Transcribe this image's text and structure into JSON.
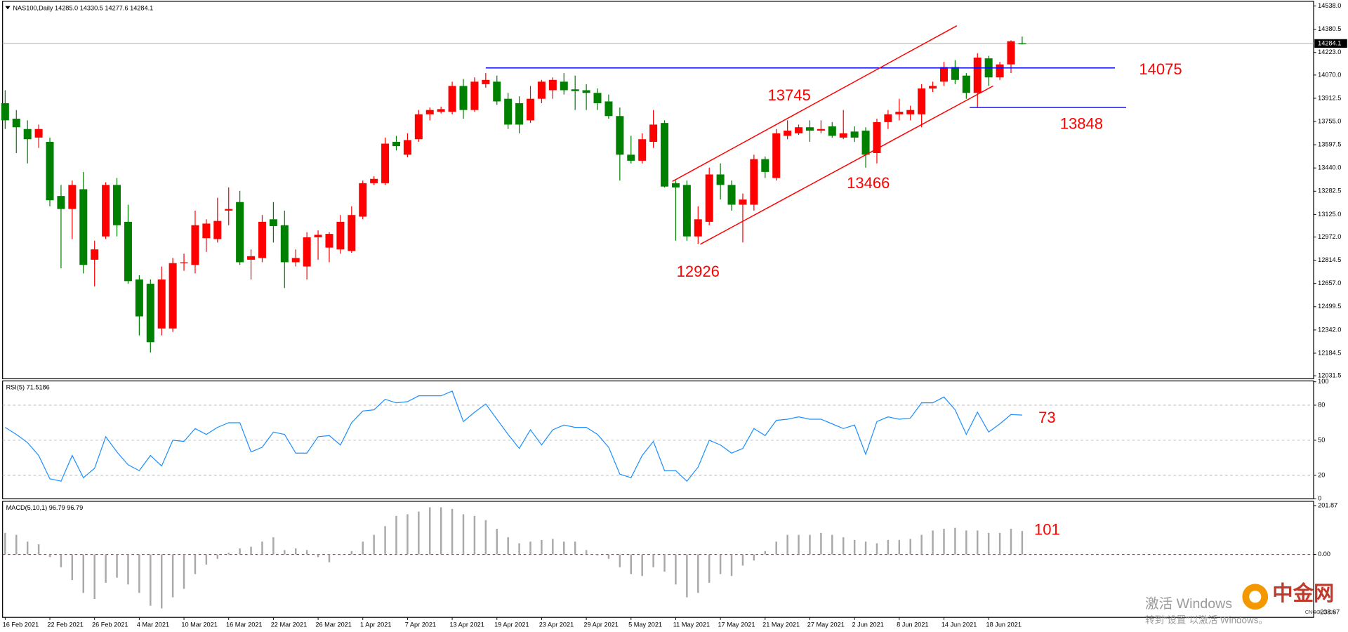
{
  "chart_data": [
    {
      "type": "candlestick",
      "title": "NAS100,Daily  14285.0 14330.5 14277.6 14284.1",
      "categories": [
        "16 Feb 2021",
        null,
        null,
        null,
        "22 Feb 2021",
        null,
        null,
        null,
        "26 Feb 2021",
        null,
        null,
        null,
        "4 Mar 2021",
        null,
        null,
        null,
        "10 Mar 2021",
        null,
        null,
        null,
        "16 Mar 2021",
        null,
        null,
        null,
        "22 Mar 2021",
        null,
        null,
        null,
        "26 Mar 2021",
        null,
        null,
        null,
        "1 Apr 2021",
        null,
        null,
        null,
        "7 Apr 2021",
        null,
        null,
        null,
        "13 Apr 2021",
        null,
        null,
        null,
        "19 Apr 2021",
        null,
        null,
        null,
        "23 Apr 2021",
        null,
        null,
        null,
        "29 Apr 2021",
        null,
        null,
        null,
        "5 May 2021",
        null,
        null,
        null,
        "11 May 2021",
        null,
        null,
        null,
        "17 May 2021",
        null,
        null,
        null,
        "21 May 2021",
        null,
        null,
        null,
        "27 May 2021",
        null,
        null,
        null,
        "2 Jun 2021",
        null,
        null,
        null,
        "8 Jun 2021",
        null,
        null,
        null,
        "14 Jun 2021",
        null,
        null,
        null,
        "18 Jun 2021",
        null,
        null,
        null
      ],
      "open": [
        13879,
        13774,
        13704,
        13646,
        13617,
        13250,
        13162,
        13296,
        12818,
        12976,
        13325,
        13075,
        12684,
        12655,
        12352,
        12352,
        12795,
        12783,
        12964,
        12958,
        13151,
        13209,
        12818,
        12830,
        13092,
        13052,
        12801,
        12772,
        12970,
        12900,
        12888,
        12877,
        13110,
        13337,
        13337,
        13617,
        13530,
        13635,
        13804,
        13821,
        13821,
        13996,
        13833,
        14008,
        14025,
        13909,
        13879,
        13763,
        13909,
        13967,
        14025,
        13973,
        13967,
        13949,
        13891,
        13792,
        13530,
        13489,
        13617,
        13745,
        13337,
        13325,
        12976,
        13075,
        13396,
        13325,
        13191,
        13191,
        13500,
        13372,
        13658,
        13675,
        13716,
        13693,
        13722,
        13646,
        13687,
        13693,
        13541,
        13751,
        13804,
        13804,
        13804,
        13979,
        14025,
        14124,
        14066,
        13949,
        14183,
        14054,
        14142,
        14285.0
      ],
      "high": [
        13967,
        13833,
        13763,
        13734,
        13646,
        13325,
        13355,
        13413,
        12947,
        13343,
        13372,
        13191,
        12713,
        12684,
        12772,
        12830,
        12859,
        13151,
        13092,
        13238,
        13308,
        13285,
        12888,
        13121,
        13209,
        13151,
        12888,
        13005,
        13017,
        13005,
        13121,
        13180,
        13355,
        13384,
        13646,
        13658,
        13675,
        13833,
        13850,
        13856,
        14025,
        14043,
        14054,
        14083,
        14066,
        13949,
        13926,
        13996,
        14037,
        14054,
        14083,
        14066,
        14008,
        13979,
        13938,
        13850,
        13658,
        13675,
        13833,
        13763,
        13355,
        13355,
        13180,
        13442,
        13471,
        13355,
        13267,
        13530,
        13518,
        13704,
        13763,
        13734,
        13763,
        13763,
        13751,
        13833,
        13722,
        13716,
        13774,
        13833,
        13909,
        13862,
        14008,
        14025,
        14159,
        14171,
        14083,
        14218,
        14200,
        14159,
        14305,
        14330.5
      ],
      "low": [
        13704,
        13541,
        13471,
        13576,
        13180,
        12760,
        12958,
        12725,
        12638,
        12958,
        12976,
        12655,
        12305,
        12189,
        12305,
        12329,
        12743,
        12725,
        12871,
        12935,
        13052,
        12783,
        12684,
        12801,
        12935,
        12626,
        12772,
        12684,
        12818,
        12801,
        12859,
        12865,
        13092,
        13325,
        13325,
        13559,
        13512,
        13617,
        13763,
        13809,
        13804,
        13774,
        13821,
        13984,
        13868,
        13704,
        13675,
        13745,
        13879,
        13909,
        13938,
        13833,
        13833,
        13833,
        13774,
        13355,
        13471,
        13471,
        13576,
        13308,
        12947,
        12947,
        12926,
        13052,
        13226,
        13151,
        12935,
        13151,
        13372,
        13355,
        13635,
        13664,
        13617,
        13675,
        13646,
        13635,
        13617,
        13442,
        13471,
        13704,
        13763,
        13763,
        13716,
        13955,
        13996,
        14008,
        13909,
        13850,
        13996,
        14037,
        14083,
        14277.6
      ],
      "close": [
        13763,
        13716,
        13635,
        13704,
        13221,
        13162,
        13325,
        12783,
        12888,
        13325,
        13052,
        12673,
        12434,
        12259,
        12684,
        12795,
        12801,
        13052,
        13063,
        13081,
        13162,
        12801,
        12842,
        13075,
        13046,
        12801,
        12830,
        12970,
        12987,
        12993,
        13075,
        13121,
        13337,
        13366,
        13605,
        13588,
        13629,
        13804,
        13833,
        13839,
        13996,
        13833,
        14025,
        14037,
        13891,
        13734,
        13734,
        13909,
        14025,
        14037,
        13967,
        13961,
        13949,
        13879,
        13792,
        13530,
        13489,
        13635,
        13734,
        13314,
        13308,
        12976,
        13092,
        13396,
        13325,
        13191,
        13226,
        13500,
        13413,
        13675,
        13693,
        13716,
        13693,
        13704,
        13658,
        13675,
        13646,
        13530,
        13751,
        13804,
        13821,
        13833,
        13979,
        13996,
        14124,
        14037,
        13949,
        14188,
        14054,
        14142,
        14299,
        14284.1
      ],
      "up_color": "#ff0000",
      "down_color": "#008000",
      "ylim": [
        12014,
        14567
      ],
      "yticks": [
        {
          "value": 14538,
          "label": "14538.0"
        },
        14380.5,
        {
          "value": 14223,
          "label": "14223.0"
        },
        {
          "value": 14070,
          "label": "14070.0"
        },
        13912.5,
        {
          "value": 13755,
          "label": "13755.0"
        },
        13597.5,
        {
          "value": 13440,
          "label": "13440.0"
        },
        13282.5,
        {
          "value": 13125,
          "label": "13125.0"
        },
        {
          "value": 12972,
          "label": "12972.0"
        },
        12814.5,
        {
          "value": 12657,
          "label": "12657.0"
        },
        12499.5,
        {
          "value": 12342,
          "label": "12342.0"
        },
        12184.5,
        12031.5
      ],
      "last_price": 14284.1,
      "last_price_color": "#b0b0b0",
      "lines": [
        {
          "color": "#0000ff",
          "x": [
            43,
            99.3
          ],
          "y": [
            14118,
            14118
          ]
        },
        {
          "color": "#0000ff",
          "x": [
            86.3,
            100.3
          ],
          "y": [
            13850,
            13850
          ]
        },
        {
          "color": "#ff0000",
          "x": [
            59.7,
            85.15
          ],
          "y": [
            13349,
            14404
          ]
        },
        {
          "color": "#ff0000",
          "x": [
            62.2,
            88.4
          ],
          "y": [
            12923,
            13996
          ]
        }
      ],
      "annotations": [
        "13745",
        "14075",
        "13848",
        "13466",
        "12926"
      ]
    },
    {
      "type": "line",
      "title": "RSI(5) 71.5186",
      "values": [
        61,
        55,
        48,
        37,
        17,
        15,
        37,
        18,
        26,
        53,
        40,
        29,
        24,
        37,
        28,
        50,
        49,
        60,
        55,
        61,
        65,
        65,
        40,
        44,
        57,
        55,
        39,
        39,
        53,
        54,
        46,
        65,
        75,
        76,
        85,
        82,
        83,
        88,
        88,
        88,
        92,
        66,
        74,
        81,
        68,
        55,
        43,
        59,
        46,
        59,
        63,
        61,
        61,
        55,
        44,
        21,
        18,
        37,
        49,
        24,
        24,
        15,
        27,
        50,
        46,
        39,
        43,
        60,
        54,
        67,
        68,
        70,
        68,
        68,
        64,
        60,
        63,
        38,
        66,
        70,
        68,
        69,
        82,
        82,
        87,
        76,
        55,
        74,
        57,
        64,
        72,
        71.5186
      ],
      "color": "#1e90ff",
      "ylim": [
        0,
        100
      ],
      "yticks": [
        0,
        20,
        50,
        80,
        100
      ],
      "levels": [
        20,
        50,
        80
      ],
      "level_color": "#b8b8b8",
      "annotations": [
        "73"
      ]
    },
    {
      "type": "bar",
      "title": "MACD(5,10,1) 96.79 96.79",
      "values": [
        89,
        81,
        53,
        42,
        -11,
        -53,
        -106,
        -159,
        -184,
        -117,
        -96,
        -124,
        -159,
        -212,
        -223,
        -177,
        -142,
        -81,
        -42,
        -18,
        7,
        25,
        32,
        53,
        71,
        18,
        25,
        18,
        -11,
        -32,
        -2,
        14,
        53,
        81,
        117,
        159,
        166,
        177,
        195,
        195,
        188,
        166,
        159,
        142,
        106,
        71,
        46,
        53,
        60,
        64,
        53,
        53,
        18,
        -4,
        -18,
        -53,
        -81,
        -89,
        -53,
        -71,
        -124,
        -177,
        -159,
        -117,
        -81,
        -89,
        -46,
        -25,
        14,
        53,
        81,
        81,
        81,
        89,
        81,
        71,
        60,
        53,
        46,
        60,
        60,
        64,
        81,
        99,
        106,
        110,
        99,
        99,
        89,
        89,
        106,
        96.79
      ],
      "color": "#a8a8a8",
      "ylim": [
        -238.67,
        201.87
      ],
      "yticks": [
        -238.67,
        {
          "value": 0,
          "label": "0.00"
        },
        201.87
      ],
      "levels": [
        0
      ],
      "level_color": "#ff0000",
      "annotations": [
        "101"
      ]
    }
  ],
  "watermark": {
    "line1": "激活 Windows",
    "line2": "转到“设置”以激活 Windows。",
    "logo": "中金网",
    "logo_sub": "CNGOLD.CN"
  }
}
